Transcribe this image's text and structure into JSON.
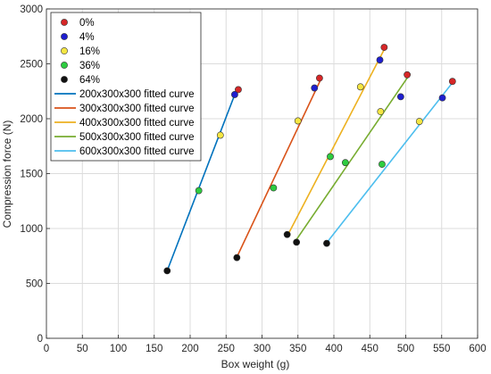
{
  "chart_data": {
    "type": "scatter",
    "xlabel": "Box weight (g)",
    "ylabel": "Compression force (N)",
    "xlim": [
      0,
      600
    ],
    "ylim": [
      0,
      3000
    ],
    "xticks": [
      0,
      50,
      100,
      150,
      200,
      250,
      300,
      350,
      400,
      450,
      500,
      550,
      600
    ],
    "yticks": [
      0,
      500,
      1000,
      1500,
      2000,
      2500,
      3000
    ],
    "grid": true,
    "legend_position": "top-left",
    "point_series": [
      {
        "name": "0%",
        "color": "#d62728",
        "points": [
          [
            267,
            2265
          ],
          [
            380,
            2370
          ],
          [
            470,
            2650
          ],
          [
            502,
            2400
          ],
          [
            565,
            2340
          ]
        ]
      },
      {
        "name": "4%",
        "color": "#1f1fcf",
        "points": [
          [
            262,
            2220
          ],
          [
            373,
            2280
          ],
          [
            464,
            2535
          ],
          [
            493,
            2200
          ],
          [
            551,
            2190
          ]
        ]
      },
      {
        "name": "16%",
        "color": "#f5e642",
        "points": [
          [
            242,
            1850
          ],
          [
            350,
            1980
          ],
          [
            437,
            2290
          ],
          [
            465,
            2065
          ],
          [
            519,
            1975
          ]
        ]
      },
      {
        "name": "36%",
        "color": "#2ecc40",
        "points": [
          [
            212,
            1345
          ],
          [
            316,
            1370
          ],
          [
            395,
            1655
          ],
          [
            416,
            1600
          ],
          [
            467,
            1585
          ]
        ]
      },
      {
        "name": "64%",
        "color": "#111111",
        "points": [
          [
            168,
            615
          ],
          [
            265,
            735
          ],
          [
            335,
            945
          ],
          [
            348,
            875
          ],
          [
            390,
            865
          ]
        ]
      }
    ],
    "fit_series": [
      {
        "name": "200x300x300 fitted curve",
        "color": "#0072bd",
        "x": [
          168,
          265
        ],
        "y": [
          615,
          2270
        ]
      },
      {
        "name": "300x300x300 fitted curve",
        "color": "#d95319",
        "x": [
          265,
          383
        ],
        "y": [
          740,
          2375
        ]
      },
      {
        "name": "400x300x300 fitted curve",
        "color": "#edb120",
        "x": [
          335,
          470
        ],
        "y": [
          930,
          2630
        ]
      },
      {
        "name": "500x300x300 fitted curve",
        "color": "#77ac30",
        "x": [
          348,
          504
        ],
        "y": [
          900,
          2390
        ]
      },
      {
        "name": "600x300x300 fitted curve",
        "color": "#4dbeee",
        "x": [
          390,
          567
        ],
        "y": [
          870,
          2345
        ]
      }
    ]
  }
}
